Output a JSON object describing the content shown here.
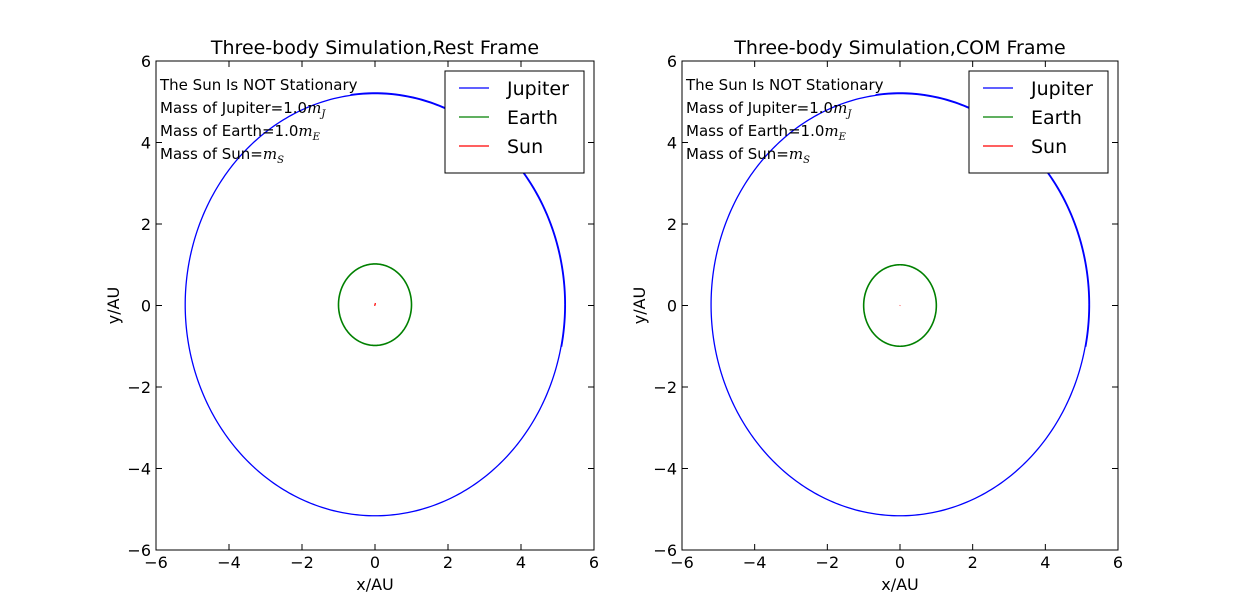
{
  "chart_data": [
    {
      "type": "line",
      "title": "Three-body Simulation,Rest Frame",
      "xlabel": "x/AU",
      "ylabel": "y/AU",
      "xlim": [
        -6,
        6
      ],
      "ylim": [
        -6,
        6
      ],
      "xticks": [
        "−6",
        "−4",
        "−2",
        "0",
        "2",
        "4",
        "6"
      ],
      "yticks": [
        "−6",
        "−4",
        "−2",
        "0",
        "2",
        "4",
        "6"
      ],
      "annotations": [
        "The Sun Is NOT Stationary",
        "Mass of Jupiter=1.0",
        "Mass of Earth=1.0",
        "Mass of Sun="
      ],
      "annotation_math": [
        "",
        "m_J",
        "m_E",
        "m_S"
      ],
      "legend": {
        "position": "top-right",
        "entries": [
          "Jupiter",
          "Earth",
          "Sun"
        ]
      },
      "series": [
        {
          "name": "Jupiter",
          "color": "#0000ff",
          "orbit": {
            "cx": 0,
            "cy": 0.02,
            "rx": 5.2,
            "ry": 5.18
          }
        },
        {
          "name": "Earth",
          "color": "#008000",
          "orbit": {
            "cx": 0,
            "cy": 0.02,
            "rx": 1.0,
            "ry": 1.0
          }
        },
        {
          "name": "Sun",
          "color": "#ff0000",
          "x": [
            -0.01,
            0.01,
            0.0
          ],
          "y": [
            -0.01,
            0.06,
            0.01
          ]
        }
      ]
    },
    {
      "type": "line",
      "title": "Three-body Simulation,COM Frame",
      "xlabel": "x/AU",
      "ylabel": "y/AU",
      "xlim": [
        -6,
        6
      ],
      "ylim": [
        -6,
        6
      ],
      "xticks": [
        "−6",
        "−4",
        "−2",
        "0",
        "2",
        "4",
        "6"
      ],
      "yticks": [
        "−6",
        "−4",
        "−2",
        "0",
        "2",
        "4",
        "6"
      ],
      "annotations": [
        "The Sun Is NOT Stationary",
        "Mass of Jupiter=1.0",
        "Mass of Earth=1.0",
        "Mass of Sun="
      ],
      "annotation_math": [
        "",
        "m_J",
        "m_E",
        "m_S"
      ],
      "legend": {
        "position": "top-right",
        "entries": [
          "Jupiter",
          "Earth",
          "Sun"
        ]
      },
      "series": [
        {
          "name": "Jupiter",
          "color": "#0000ff",
          "orbit": {
            "cx": 0,
            "cy": 0.02,
            "rx": 5.2,
            "ry": 5.18
          }
        },
        {
          "name": "Earth",
          "color": "#008000",
          "orbit": {
            "cx": 0,
            "cy": 0.0,
            "rx": 1.0,
            "ry": 1.0
          }
        },
        {
          "name": "Sun",
          "color": "#ff0000",
          "x": [
            -0.005,
            0.005
          ],
          "y": [
            -0.005,
            0.005
          ]
        }
      ]
    }
  ]
}
